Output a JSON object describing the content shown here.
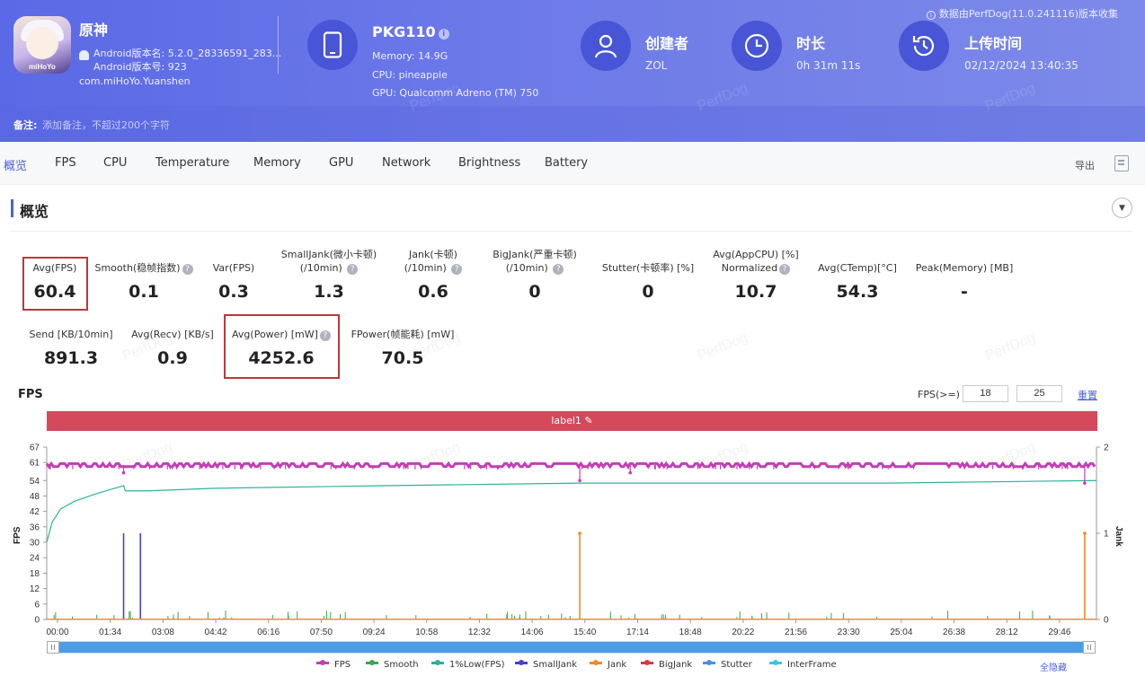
{
  "app": {
    "name": "原神",
    "version_name": "Android版本名: 5.2.0_28336591_283...",
    "version_code": "Android版本号: 923",
    "package": "com.miHoYo.Yuanshen",
    "icon_text": "miHoYo"
  },
  "device": {
    "model": "PKG110",
    "memory": "Memory: 14.9G",
    "cpu": "CPU: pineapple",
    "gpu": "GPU: Qualcomm Adreno (TM) 750"
  },
  "meta": {
    "creator_label": "创建者",
    "creator_value": "ZOL",
    "duration_label": "时长",
    "duration_value": "0h 31m 11s",
    "upload_label": "上传时间",
    "upload_value": "02/12/2024 13:40:35"
  },
  "source_note": "数据由PerfDog(11.0.241116)版本收集",
  "note": {
    "label": "备注:",
    "placeholder": "添加备注，不超过200个字符"
  },
  "watermark": "PerfDog",
  "tabs": [
    "概览",
    "FPS",
    "CPU",
    "Temperature",
    "Memory",
    "GPU",
    "Network",
    "Brightness",
    "Battery"
  ],
  "export_label": "导出",
  "section_title": "概览",
  "stats_row1": [
    {
      "label": "Avg(FPS)",
      "value": "60.4"
    },
    {
      "label": "Smooth(稳帧指数)",
      "value": "0.1"
    },
    {
      "label": "Var(FPS)",
      "value": "0.3"
    },
    {
      "label": "SmallJank(微小卡顿)",
      "label2": "(/10min)",
      "value": "1.3"
    },
    {
      "label": "Jank(卡顿)",
      "label2": "(/10min)",
      "value": "0.6"
    },
    {
      "label": "BigJank(严重卡顿)",
      "label2": "(/10min)",
      "value": "0"
    },
    {
      "label": "Stutter(卡顿率) [%]",
      "value": "0"
    },
    {
      "label": "Avg(AppCPU) [%]",
      "label2": "Normalized",
      "value": "10.7"
    },
    {
      "label": "Avg(CTemp)[°C]",
      "value": "54.3"
    },
    {
      "label": "Peak(Memory) [MB]",
      "value": "-"
    }
  ],
  "stats_row2": [
    {
      "label": "Send [KB/10min]",
      "value": "891.3"
    },
    {
      "label": "Avg(Recv) [KB/s]",
      "value": "0.9"
    },
    {
      "label": "Avg(Power) [mW]",
      "value": "4252.6"
    },
    {
      "label": "FPower(帧能耗) [mW]",
      "value": "70.5"
    }
  ],
  "fps_chart_title": "FPS",
  "threshold": {
    "label": "FPS(>=)",
    "v1": "18",
    "v2": "25",
    "reset": "重置"
  },
  "label_bar": "label1",
  "chart_data": {
    "type": "line",
    "x_ticks": [
      "00:00",
      "01:34",
      "03:08",
      "04:42",
      "06:16",
      "07:50",
      "09:24",
      "10:58",
      "12:32",
      "14:06",
      "15:40",
      "17:14",
      "18:48",
      "20:22",
      "21:56",
      "23:30",
      "25:04",
      "26:38",
      "28:12",
      "29:46"
    ],
    "x_range_seconds": [
      0,
      1871
    ],
    "y_left_label": "FPS",
    "y_left_ticks": [
      0,
      6,
      12,
      18,
      24,
      30,
      36,
      42,
      48,
      54,
      61,
      67
    ],
    "y_left_range": [
      0,
      67
    ],
    "y_right_label": "Jank",
    "y_right_ticks": [
      0,
      1,
      2
    ],
    "y_right_range": [
      0,
      2
    ],
    "series": [
      {
        "name": "FPS",
        "color": "#c23fb5",
        "baseline": 60,
        "dips": [
          [
            137,
            57
          ],
          [
            950,
            54
          ],
          [
            1040,
            57
          ],
          [
            1850,
            53
          ]
        ]
      },
      {
        "name": "Smooth",
        "color": "#3aa84c"
      },
      {
        "name": "1%Low(FPS)",
        "color": "#2ab39c",
        "points": [
          [
            0,
            30
          ],
          [
            10,
            38
          ],
          [
            25,
            43
          ],
          [
            50,
            46
          ],
          [
            90,
            49
          ],
          [
            137,
            52
          ],
          [
            140,
            50
          ],
          [
            180,
            50
          ],
          [
            300,
            51
          ],
          [
            600,
            52
          ],
          [
            950,
            53
          ],
          [
            1200,
            53
          ],
          [
            1500,
            53
          ],
          [
            1871,
            54
          ]
        ]
      },
      {
        "name": "SmallJank",
        "color": "#4a3fd0",
        "spikes": [
          [
            137,
            1
          ],
          [
            167,
            1
          ]
        ]
      },
      {
        "name": "Jank",
        "color": "#f08a2a",
        "spikes": [
          [
            950,
            1
          ],
          [
            1850,
            1
          ]
        ]
      },
      {
        "name": "BigJank",
        "color": "#d63a3a"
      },
      {
        "name": "Stutter",
        "color": "#4a8ee6"
      },
      {
        "name": "InterFrame",
        "color": "#3ac6e0"
      }
    ]
  },
  "hide_all": "全隐藏"
}
